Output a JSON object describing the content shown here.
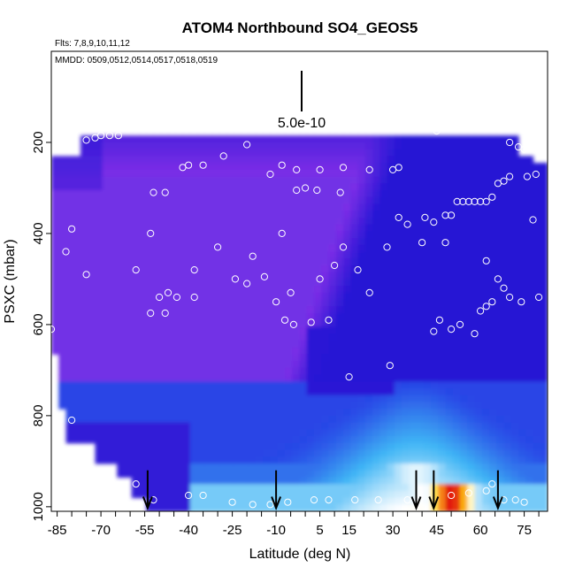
{
  "chart_data": {
    "type": "heatmap",
    "title": "ATOM4 Northbound SO4_GEOS5",
    "flights_note": "Flts: 7,8,9,10,11,12",
    "dates_note": "MMDD: 0509,0512,0514,0517,0518,0519",
    "scale_label": "5.0e-10",
    "xlabel": "Latitude (deg N)",
    "ylabel": "PSXC (mbar)",
    "xlim": [
      -87,
      83
    ],
    "ylim": [
      1010,
      0
    ],
    "x_ticks": [
      -85,
      -70,
      -55,
      -40,
      -25,
      -10,
      5,
      15,
      30,
      45,
      60,
      75
    ],
    "y_ticks": [
      200,
      400,
      600,
      800,
      1000
    ],
    "colors": {
      "deep_blue": "#1010d0",
      "purple": "#7a2ee6",
      "light_blue": "#3fb5f5",
      "white": "#ffffff",
      "yellow": "#ffd400",
      "red": "#e01010"
    },
    "arrow_latitudes": [
      -54,
      -10,
      38,
      44,
      66
    ],
    "observations": [
      [
        -85,
        200
      ],
      [
        -83,
        200
      ],
      [
        -75,
        195
      ],
      [
        -72,
        190
      ],
      [
        -70,
        185
      ],
      [
        -67,
        185
      ],
      [
        -64,
        185
      ],
      [
        -42,
        255
      ],
      [
        -40,
        250
      ],
      [
        -35,
        250
      ],
      [
        -28,
        230
      ],
      [
        -20,
        205
      ],
      [
        -8,
        250
      ],
      [
        -12,
        270
      ],
      [
        -3,
        260
      ],
      [
        5,
        260
      ],
      [
        13,
        255
      ],
      [
        22,
        260
      ],
      [
        30,
        260
      ],
      [
        32,
        255
      ],
      [
        45,
        175
      ],
      [
        -52,
        310
      ],
      [
        -48,
        310
      ],
      [
        -3,
        305
      ],
      [
        0,
        300
      ],
      [
        4,
        305
      ],
      [
        12,
        310
      ],
      [
        32,
        365
      ],
      [
        41,
        365
      ],
      [
        44,
        375
      ],
      [
        48,
        360
      ],
      [
        50,
        360
      ],
      [
        52,
        330
      ],
      [
        54,
        330
      ],
      [
        56,
        330
      ],
      [
        58,
        330
      ],
      [
        60,
        330
      ],
      [
        62,
        330
      ],
      [
        64,
        320
      ],
      [
        66,
        290
      ],
      [
        68,
        285
      ],
      [
        70,
        275
      ],
      [
        76,
        275
      ],
      [
        79,
        270
      ],
      [
        70,
        200
      ],
      [
        73,
        210
      ],
      [
        75,
        215
      ],
      [
        -82,
        440
      ],
      [
        -80,
        390
      ],
      [
        -75,
        490
      ],
      [
        -58,
        480
      ],
      [
        -53,
        400
      ],
      [
        -50,
        540
      ],
      [
        -47,
        530
      ],
      [
        -38,
        480
      ],
      [
        -30,
        430
      ],
      [
        -24,
        500
      ],
      [
        -20,
        510
      ],
      [
        -18,
        450
      ],
      [
        -14,
        495
      ],
      [
        -10,
        550
      ],
      [
        -8,
        400
      ],
      [
        -5,
        530
      ],
      [
        5,
        500
      ],
      [
        10,
        470
      ],
      [
        13,
        430
      ],
      [
        18,
        480
      ],
      [
        22,
        530
      ],
      [
        28,
        430
      ],
      [
        35,
        380
      ],
      [
        40,
        420
      ],
      [
        48,
        420
      ],
      [
        62,
        460
      ],
      [
        66,
        500
      ],
      [
        68,
        520
      ],
      [
        70,
        540
      ],
      [
        74,
        550
      ],
      [
        78,
        370
      ],
      [
        80,
        540
      ],
      [
        -87,
        610
      ],
      [
        -53,
        575
      ],
      [
        -48,
        575
      ],
      [
        -44,
        540
      ],
      [
        -38,
        540
      ],
      [
        -7,
        590
      ],
      [
        -4,
        600
      ],
      [
        2,
        595
      ],
      [
        8,
        590
      ],
      [
        15,
        715
      ],
      [
        29,
        690
      ],
      [
        44,
        615
      ],
      [
        46,
        590
      ],
      [
        50,
        610
      ],
      [
        53,
        600
      ],
      [
        58,
        620
      ],
      [
        60,
        570
      ],
      [
        62,
        560
      ],
      [
        64,
        550
      ],
      [
        -80,
        810
      ],
      [
        -58,
        950
      ],
      [
        -52,
        985
      ],
      [
        -40,
        975
      ],
      [
        -35,
        975
      ],
      [
        -25,
        990
      ],
      [
        -18,
        995
      ],
      [
        -12,
        995
      ],
      [
        -6,
        990
      ],
      [
        3,
        985
      ],
      [
        8,
        985
      ],
      [
        17,
        985
      ],
      [
        25,
        985
      ],
      [
        35,
        985
      ],
      [
        50,
        975
      ],
      [
        56,
        970
      ],
      [
        62,
        965
      ],
      [
        64,
        950
      ],
      [
        68,
        985
      ],
      [
        72,
        985
      ],
      [
        75,
        990
      ]
    ]
  }
}
